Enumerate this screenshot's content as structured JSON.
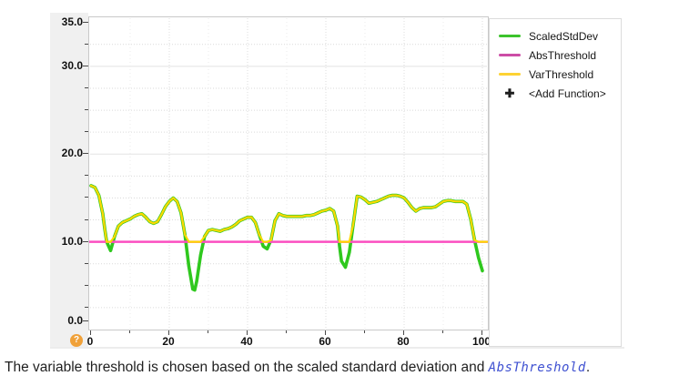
{
  "caption": {
    "text_before": "The variable threshold is chosen based on the scaled standard deviation and ",
    "code_link": "AbsThreshold",
    "text_after": "."
  },
  "help_icon": {
    "glyph": "?",
    "color": "#f0a139"
  },
  "legend": {
    "items": [
      {
        "label": "ScaledStdDev",
        "swatch_color": "#3cc32c",
        "kind": "line"
      },
      {
        "label": "AbsThreshold",
        "swatch_color": "#cc4da6",
        "kind": "line"
      },
      {
        "label": "VarThreshold",
        "swatch_color": "#fdd233",
        "kind": "line"
      },
      {
        "label": "<Add Function>",
        "icon": "plus-icon",
        "glyph": "✚",
        "kind": "add"
      }
    ]
  },
  "chart_data": {
    "type": "line",
    "title": "",
    "xlabel": "",
    "ylabel": "",
    "xlim": [
      0,
      101.5
    ],
    "ylim": [
      0,
      35.6
    ],
    "grid": "major solid + minor dotted, light gray",
    "legend_position": "right-panel",
    "x_ticks": [
      {
        "v": 0,
        "label": "0"
      },
      {
        "v": 20,
        "label": "20"
      },
      {
        "v": 40,
        "label": "40"
      },
      {
        "v": 60,
        "label": "60"
      },
      {
        "v": 80,
        "label": "80"
      },
      {
        "v": 100,
        "label": "100"
      }
    ],
    "y_ticks": [
      {
        "v": 35,
        "label": "35.0"
      },
      {
        "v": 30,
        "label": "30.0"
      },
      {
        "v": 20,
        "label": "20.0"
      },
      {
        "v": 10,
        "label": "10.0"
      },
      {
        "v": 0,
        "label": "0.0"
      }
    ],
    "x_minor_step": 10,
    "y_minor_step": 2.5,
    "series": [
      {
        "name": "ScaledStdDev",
        "color": "#2fc81e",
        "points": [
          [
            0,
            16.4
          ],
          [
            1,
            16.2
          ],
          [
            2,
            15.3
          ],
          [
            3,
            13.2
          ],
          [
            3.5,
            11.5
          ],
          [
            4,
            10.0
          ],
          [
            5,
            9.0
          ],
          [
            6,
            10.6
          ],
          [
            7,
            11.8
          ],
          [
            8,
            12.2
          ],
          [
            9,
            12.4
          ],
          [
            10,
            12.6
          ],
          [
            11,
            12.9
          ],
          [
            12,
            13.1
          ],
          [
            13,
            13.2
          ],
          [
            14,
            12.8
          ],
          [
            15,
            12.3
          ],
          [
            16,
            12.1
          ],
          [
            17,
            12.3
          ],
          [
            18,
            13.1
          ],
          [
            19,
            14.0
          ],
          [
            20,
            14.6
          ],
          [
            21,
            15.0
          ],
          [
            22,
            14.6
          ],
          [
            23,
            13.3
          ],
          [
            24,
            10.8
          ],
          [
            25,
            7.2
          ],
          [
            26,
            4.6
          ],
          [
            26.5,
            4.5
          ],
          [
            27,
            5.5
          ],
          [
            28,
            8.5
          ],
          [
            29,
            10.6
          ],
          [
            30,
            11.3
          ],
          [
            31,
            11.4
          ],
          [
            32,
            11.3
          ],
          [
            33,
            11.2
          ],
          [
            34,
            11.4
          ],
          [
            35,
            11.5
          ],
          [
            36,
            11.7
          ],
          [
            37,
            12.0
          ],
          [
            38,
            12.4
          ],
          [
            39,
            12.6
          ],
          [
            40,
            12.8
          ],
          [
            41,
            12.8
          ],
          [
            42,
            12.2
          ],
          [
            43,
            10.8
          ],
          [
            44,
            9.5
          ],
          [
            45,
            9.2
          ],
          [
            46,
            10.2
          ],
          [
            47,
            12.4
          ],
          [
            48,
            13.2
          ],
          [
            49,
            13.0
          ],
          [
            50,
            12.9
          ],
          [
            51,
            12.9
          ],
          [
            52,
            12.9
          ],
          [
            53,
            12.9
          ],
          [
            54,
            12.9
          ],
          [
            55,
            13.0
          ],
          [
            56,
            13.0
          ],
          [
            57,
            13.1
          ],
          [
            58,
            13.3
          ],
          [
            59,
            13.5
          ],
          [
            60,
            13.6
          ],
          [
            61,
            13.8
          ],
          [
            62,
            13.5
          ],
          [
            63,
            11.8
          ],
          [
            63.5,
            9.5
          ],
          [
            64,
            7.8
          ],
          [
            65,
            7.1
          ],
          [
            66,
            8.8
          ],
          [
            67,
            12.0
          ],
          [
            68,
            15.2
          ],
          [
            69,
            15.1
          ],
          [
            70,
            14.8
          ],
          [
            71,
            14.4
          ],
          [
            72,
            14.5
          ],
          [
            73,
            14.6
          ],
          [
            74,
            14.8
          ],
          [
            75,
            15.0
          ],
          [
            76,
            15.2
          ],
          [
            77,
            15.3
          ],
          [
            78,
            15.3
          ],
          [
            79,
            15.2
          ],
          [
            80,
            15.0
          ],
          [
            81,
            14.5
          ],
          [
            82,
            13.9
          ],
          [
            83,
            13.5
          ],
          [
            84,
            13.8
          ],
          [
            85,
            13.9
          ],
          [
            86,
            13.9
          ],
          [
            87,
            13.9
          ],
          [
            88,
            14.0
          ],
          [
            89,
            14.3
          ],
          [
            90,
            14.6
          ],
          [
            91,
            14.7
          ],
          [
            92,
            14.7
          ],
          [
            93,
            14.6
          ],
          [
            94,
            14.6
          ],
          [
            95,
            14.6
          ],
          [
            96,
            14.3
          ],
          [
            97,
            12.6
          ],
          [
            98,
            10.2
          ],
          [
            99,
            8.2
          ],
          [
            100,
            6.7
          ]
        ]
      },
      {
        "name": "AbsThreshold",
        "color": "#fb4ec0",
        "constant": 10,
        "extent": "full-width"
      },
      {
        "name": "VarThreshold",
        "color": "#ffd800",
        "derived": "max(ScaledStdDev, AbsThreshold)",
        "extends_to_right_edge": true
      }
    ]
  }
}
